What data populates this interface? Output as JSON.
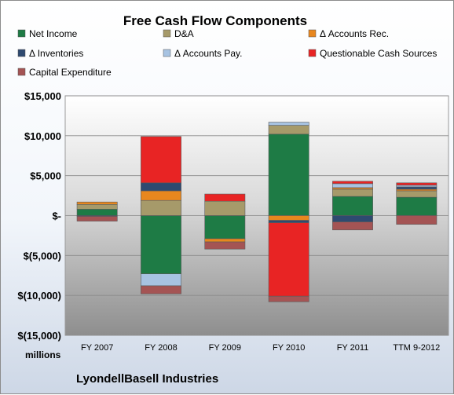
{
  "chart_data": {
    "type": "bar",
    "stacked": true,
    "title": "Free Cash Flow Components",
    "units_label": "millions",
    "company": "LyondellBasell Industries",
    "categories": [
      "FY 2007",
      "FY 2008",
      "FY 2009",
      "FY 2010",
      "FY 2011",
      "TTM 9-2012"
    ],
    "ylim": [
      -15000,
      15000
    ],
    "yticks": [
      15000,
      10000,
      5000,
      0,
      -5000,
      -10000,
      -15000
    ],
    "ytick_labels": [
      "$15,000",
      "$10,000",
      "$5,000",
      "$-",
      "$(5,000)",
      "$(10,000)",
      "$(15,000)"
    ],
    "legend_position": "top",
    "series": [
      {
        "name": "Net Income",
        "color": "#1e7b45",
        "values": [
          800,
          -7300,
          -2900,
          10200,
          2400,
          2300
        ]
      },
      {
        "name": "D&A",
        "color": "#a69a6a",
        "values": [
          600,
          1900,
          1800,
          1100,
          900,
          800
        ]
      },
      {
        "name": "Δ Accounts Rec.",
        "color": "#e8871e",
        "values": [
          300,
          1200,
          -400,
          -600,
          200,
          200
        ]
      },
      {
        "name": "Δ Inventories",
        "color": "#2e4a70",
        "values": [
          -100,
          1000,
          0,
          -300,
          -800,
          300
        ]
      },
      {
        "name": "Δ Accounts Pay.",
        "color": "#a7c3e2",
        "values": [
          0,
          -1500,
          0,
          400,
          500,
          200
        ]
      },
      {
        "name": "Questionable Cash Sources",
        "color": "#e82424",
        "values": [
          0,
          5800,
          900,
          -9200,
          300,
          300
        ]
      },
      {
        "name": "Capital Expenditure",
        "color": "#a45454",
        "values": [
          -600,
          -1000,
          -900,
          -700,
          -1000,
          -1100
        ]
      }
    ]
  }
}
